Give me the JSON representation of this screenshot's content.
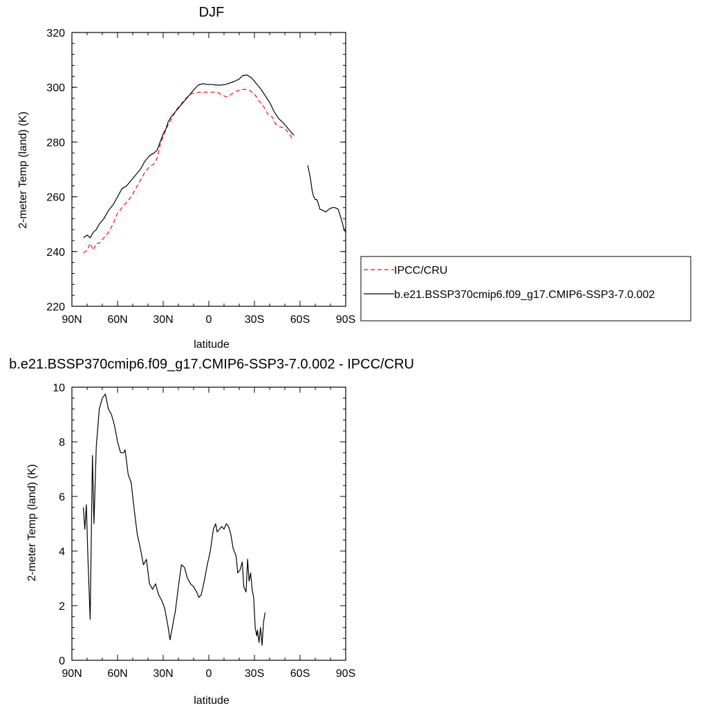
{
  "chart_data": [
    {
      "type": "line",
      "title": "DJF",
      "xlabel": "latitude",
      "ylabel": "2-meter Temp (land) (K)",
      "xlim": [
        90,
        -90
      ],
      "ylim": [
        220,
        320
      ],
      "x_ticks": [
        90,
        60,
        30,
        0,
        -30,
        -60,
        -90
      ],
      "x_tick_labels": [
        "90N",
        "60N",
        "30N",
        "0",
        "30S",
        "60S",
        "90S"
      ],
      "y_ticks": [
        220,
        240,
        260,
        280,
        300,
        320
      ],
      "y_tick_labels": [
        "220",
        "240",
        "260",
        "280",
        "300",
        "320"
      ],
      "grid": false,
      "legend_position": "right",
      "series": [
        {
          "name": "IPCC/CRU",
          "color": "#ff0000",
          "dash": "dashed",
          "segments": [
            [
              [
                82.5,
                239.5
              ],
              [
                80,
                240.5
              ],
              [
                78,
                243
              ],
              [
                76,
                240.5
              ],
              [
                74,
                243
              ],
              [
                72,
                243
              ],
              [
                69,
                245
              ],
              [
                66,
                247
              ],
              [
                63,
                250
              ],
              [
                60,
                254
              ],
              [
                57,
                256
              ],
              [
                54,
                258
              ],
              [
                51,
                260
              ],
              [
                48,
                263
              ],
              [
                45,
                266
              ],
              [
                42,
                269
              ],
              [
                39,
                271
              ],
              [
                36,
                272
              ],
              [
                34,
                274
              ],
              [
                32,
                279
              ],
              [
                30,
                282
              ],
              [
                27,
                286
              ],
              [
                24,
                289
              ],
              [
                21,
                292
              ],
              [
                18,
                294
              ],
              [
                15,
                296
              ],
              [
                12,
                297.5
              ],
              [
                9,
                298
              ],
              [
                6,
                298.2
              ],
              [
                3,
                298.2
              ],
              [
                0,
                298.2
              ],
              [
                -3,
                298.2
              ],
              [
                -6,
                298.1
              ],
              [
                -9,
                297
              ],
              [
                -12,
                296.5
              ],
              [
                -15,
                297.5
              ],
              [
                -18,
                298.5
              ],
              [
                -21,
                299.2
              ],
              [
                -24,
                299.2
              ],
              [
                -27,
                298.8
              ],
              [
                -30,
                297.5
              ],
              [
                -33,
                295
              ],
              [
                -36,
                293
              ],
              [
                -39,
                290
              ],
              [
                -42,
                289
              ],
              [
                -44,
                286.5
              ],
              [
                -47,
                285.5
              ],
              [
                -50,
                285
              ],
              [
                -53,
                283
              ],
              [
                -55,
                281
              ],
              [
                -56,
                281
              ]
            ]
          ]
        },
        {
          "name": "b.e21.BSSP370cmip6.f09_g17.CMIP6-SSP3-7.0.002",
          "color": "#000000",
          "dash": "solid",
          "segments": [
            [
              [
                82.5,
                245
              ],
              [
                80,
                246
              ],
              [
                78,
                245
              ],
              [
                76,
                247
              ],
              [
                74,
                248
              ],
              [
                72,
                250
              ],
              [
                69,
                252
              ],
              [
                66,
                255
              ],
              [
                63,
                257
              ],
              [
                60,
                260
              ],
              [
                57,
                263
              ],
              [
                54,
                264
              ],
              [
                51,
                266
              ],
              [
                48,
                268
              ],
              [
                45,
                270
              ],
              [
                42,
                273
              ],
              [
                39,
                275
              ],
              [
                36,
                276
              ],
              [
                34,
                277
              ],
              [
                32,
                280
              ],
              [
                30,
                283
              ],
              [
                28,
                285
              ],
              [
                27,
                287
              ],
              [
                25,
                289
              ],
              [
                22,
                291
              ],
              [
                19,
                293
              ],
              [
                16,
                295
              ],
              [
                13,
                297
              ],
              [
                10,
                299
              ],
              [
                7,
                300.8
              ],
              [
                4,
                301.3
              ],
              [
                1,
                301
              ],
              [
                -2,
                301
              ],
              [
                -5,
                300.8
              ],
              [
                -8,
                300.8
              ],
              [
                -11,
                301
              ],
              [
                -14,
                301.6
              ],
              [
                -17,
                302.2
              ],
              [
                -20,
                303
              ],
              [
                -22,
                304.2
              ],
              [
                -25,
                304.5
              ],
              [
                -28,
                303.5
              ],
              [
                -31,
                301.5
              ],
              [
                -34,
                299.5
              ],
              [
                -37,
                297
              ],
              [
                -40,
                294.5
              ],
              [
                -43,
                291
              ],
              [
                -46,
                288.5
              ],
              [
                -49,
                287
              ],
              [
                -52,
                285
              ],
              [
                -55,
                283
              ],
              [
                -56,
                282.5
              ]
            ],
            [
              [
                -65,
                271.5
              ],
              [
                -66,
                269
              ],
              [
                -67,
                266
              ],
              [
                -68,
                262
              ],
              [
                -69,
                260
              ],
              [
                -70,
                259
              ],
              [
                -71,
                259
              ],
              [
                -72,
                257.5
              ],
              [
                -73,
                255.5
              ],
              [
                -75,
                255
              ],
              [
                -77,
                254.5
              ],
              [
                -79,
                255.5
              ],
              [
                -81,
                256
              ],
              [
                -83,
                256
              ],
              [
                -85,
                255.5
              ],
              [
                -87,
                252
              ],
              [
                -89,
                248
              ],
              [
                -90,
                247
              ]
            ]
          ]
        }
      ]
    },
    {
      "type": "line",
      "title": "b.e21.BSSP370cmip6.f09_g17.CMIP6-SSP3-7.0.002 - IPCC/CRU",
      "xlabel": "latitude",
      "ylabel": "2-meter Temp (land) (K)",
      "xlim": [
        90,
        -90
      ],
      "ylim": [
        0,
        10
      ],
      "x_ticks": [
        90,
        60,
        30,
        0,
        -30,
        -60,
        -90
      ],
      "x_tick_labels": [
        "90N",
        "60N",
        "30N",
        "0",
        "30S",
        "60S",
        "90S"
      ],
      "y_ticks": [
        0,
        2,
        4,
        6,
        8,
        10
      ],
      "y_tick_labels": [
        "0",
        "2",
        "4",
        "6",
        "8",
        "10"
      ],
      "grid": false,
      "series": [
        {
          "color": "#000000",
          "dash": "solid",
          "segments": [
            [
              [
                82.5,
                5.6
              ],
              [
                81.5,
                4.8
              ],
              [
                80.5,
                5.7
              ],
              [
                79.5,
                3.8
              ],
              [
                78,
                1.5
              ],
              [
                76.5,
                7.5
              ],
              [
                75.5,
                5
              ],
              [
                74,
                7.8
              ],
              [
                72,
                9.2
              ],
              [
                70,
                9.6
              ],
              [
                68,
                9.75
              ],
              [
                66,
                9.2
              ],
              [
                64,
                9
              ],
              [
                62,
                8.6
              ],
              [
                60,
                8
              ],
              [
                58,
                7.6
              ],
              [
                56,
                7.6
              ],
              [
                55,
                7.7
              ],
              [
                53,
                6.8
              ],
              [
                51,
                6.5
              ],
              [
                49,
                5.5
              ],
              [
                47,
                4.6
              ],
              [
                45,
                4.1
              ],
              [
                43,
                3.5
              ],
              [
                41,
                3.7
              ],
              [
                39,
                2.8
              ],
              [
                37,
                2.6
              ],
              [
                35,
                2.8
              ],
              [
                33,
                2.4
              ],
              [
                31,
                2.2
              ],
              [
                29,
                1.9
              ],
              [
                27,
                1.3
              ],
              [
                25.5,
                0.75
              ],
              [
                24,
                1.2
              ],
              [
                22,
                1.8
              ],
              [
                20,
                2.7
              ],
              [
                18,
                3.5
              ],
              [
                16,
                3.4
              ],
              [
                14,
                3
              ],
              [
                12,
                2.8
              ],
              [
                10,
                2.7
              ],
              [
                8,
                2.5
              ],
              [
                6.5,
                2.3
              ],
              [
                5,
                2.4
              ],
              [
                3,
                2.9
              ],
              [
                1,
                3.5
              ],
              [
                -1,
                4
              ],
              [
                -3,
                4.8
              ],
              [
                -4.5,
                5
              ],
              [
                -5.5,
                4.7
              ],
              [
                -7,
                4.8
              ],
              [
                -8.5,
                4.9
              ],
              [
                -10,
                4.8
              ],
              [
                -11.5,
                5
              ],
              [
                -13,
                4.9
              ],
              [
                -14.5,
                4.6
              ],
              [
                -16,
                4.1
              ],
              [
                -18,
                3.8
              ],
              [
                -19,
                3.2
              ],
              [
                -20.5,
                3.3
              ],
              [
                -22,
                3.6
              ],
              [
                -23,
                2.7
              ],
              [
                -24.5,
                2.5
              ],
              [
                -25.5,
                3.7
              ],
              [
                -26.5,
                2.9
              ],
              [
                -27.5,
                3.2
              ],
              [
                -28.5,
                2.6
              ],
              [
                -29.5,
                2.3
              ],
              [
                -30.5,
                1.2
              ],
              [
                -31.5,
                0.9
              ],
              [
                -32,
                1.1
              ],
              [
                -33,
                0.65
              ],
              [
                -34,
                1.2
              ],
              [
                -35,
                0.55
              ],
              [
                -36,
                1.4
              ],
              [
                -37,
                1.75
              ]
            ]
          ]
        }
      ]
    }
  ],
  "legend": {
    "entries": [
      {
        "label": "IPCC/CRU",
        "color": "#ff0000",
        "dash": "dashed"
      },
      {
        "label": "b.e21.BSSP370cmip6.f09_g17.CMIP6-SSP3-7.0.002",
        "color": "#000000",
        "dash": "solid"
      }
    ]
  }
}
